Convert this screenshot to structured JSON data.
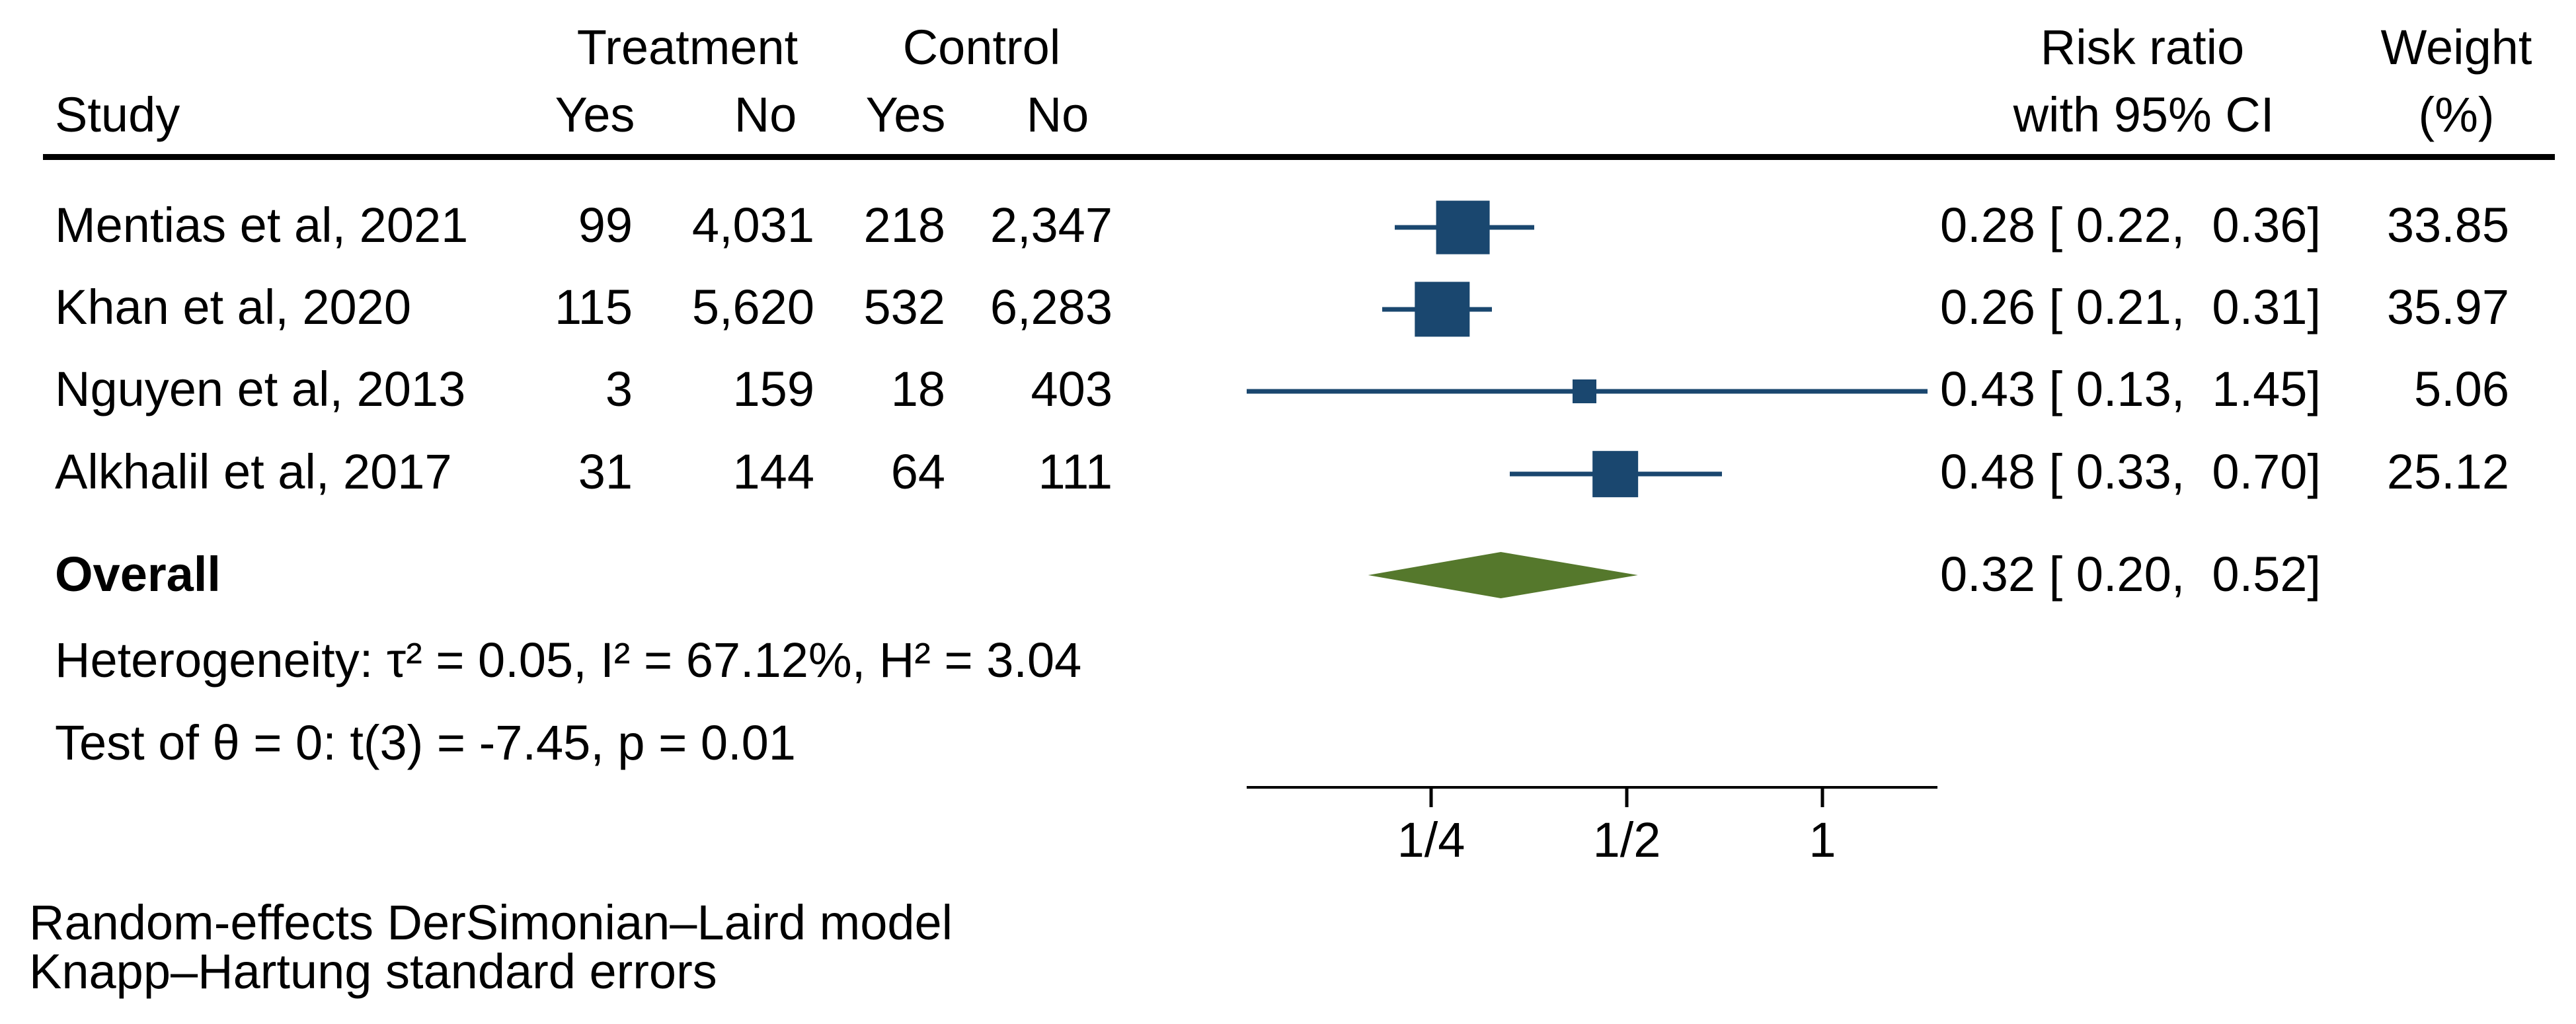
{
  "header": {
    "study": "Study",
    "treatment_group": "Treatment",
    "control_group": "Control",
    "treatment_yes": "Yes",
    "treatment_no": "No",
    "control_yes": "Yes",
    "control_no": "No",
    "rr_line1": "Risk ratio",
    "rr_line2": "with 95% CI",
    "weight_line1": "Weight",
    "weight_line2": "(%)"
  },
  "chart_data": {
    "type": "forest",
    "x_scale": "log2",
    "effect_measure": "Risk ratio",
    "axis": {
      "ticks": [
        {
          "label": "1/4",
          "value": 0.25
        },
        {
          "label": "1/2",
          "value": 0.5
        },
        {
          "label": "1",
          "value": 1
        }
      ],
      "range_lo": 0.13,
      "range_hi": 1.5
    },
    "studies": [
      {
        "label": "Mentias et al, 2021",
        "t_yes": "99",
        "t_no": "4,031",
        "c_yes": "218",
        "c_no": "2,347",
        "est": 0.28,
        "lo": 0.22,
        "hi": 0.36,
        "rr_text": "0.28 [ 0.22,  0.36]",
        "weight": 33.85,
        "weight_text": "33.85"
      },
      {
        "label": "Khan et al, 2020",
        "t_yes": "115",
        "t_no": "5,620",
        "c_yes": "532",
        "c_no": "6,283",
        "est": 0.26,
        "lo": 0.21,
        "hi": 0.31,
        "rr_text": "0.26 [ 0.21,  0.31]",
        "weight": 35.97,
        "weight_text": "35.97"
      },
      {
        "label": "Nguyen et al, 2013",
        "t_yes": "3",
        "t_no": "159",
        "c_yes": "18",
        "c_no": "403",
        "est": 0.43,
        "lo": 0.13,
        "hi": 1.45,
        "rr_text": "0.43 [ 0.13,  1.45]",
        "weight": 5.06,
        "weight_text": "5.06"
      },
      {
        "label": "Alkhalil et al, 2017",
        "t_yes": "31",
        "t_no": "144",
        "c_yes": "64",
        "c_no": "111",
        "est": 0.48,
        "lo": 0.33,
        "hi": 0.7,
        "rr_text": "0.48 [ 0.33,  0.70]",
        "weight": 25.12,
        "weight_text": "25.12"
      }
    ],
    "overall": {
      "label": "Overall",
      "est": 0.32,
      "lo": 0.2,
      "hi": 0.52,
      "rr_text": "0.32 [ 0.20,  0.52]"
    },
    "heterogeneity_text": "Heterogeneity: τ² = 0.05, I² = 67.12%, H² = 3.04",
    "test_text": "Test of θ = 0: t(3) = -7.45, p = 0.01"
  },
  "footer": {
    "line1": "Random-effects DerSimonian–Laird model",
    "line2": "Knapp–Hartung standard errors"
  },
  "colors": {
    "marker": "#1a476f",
    "diamond": "#55782c",
    "text": "#000000",
    "rule": "#000000"
  }
}
